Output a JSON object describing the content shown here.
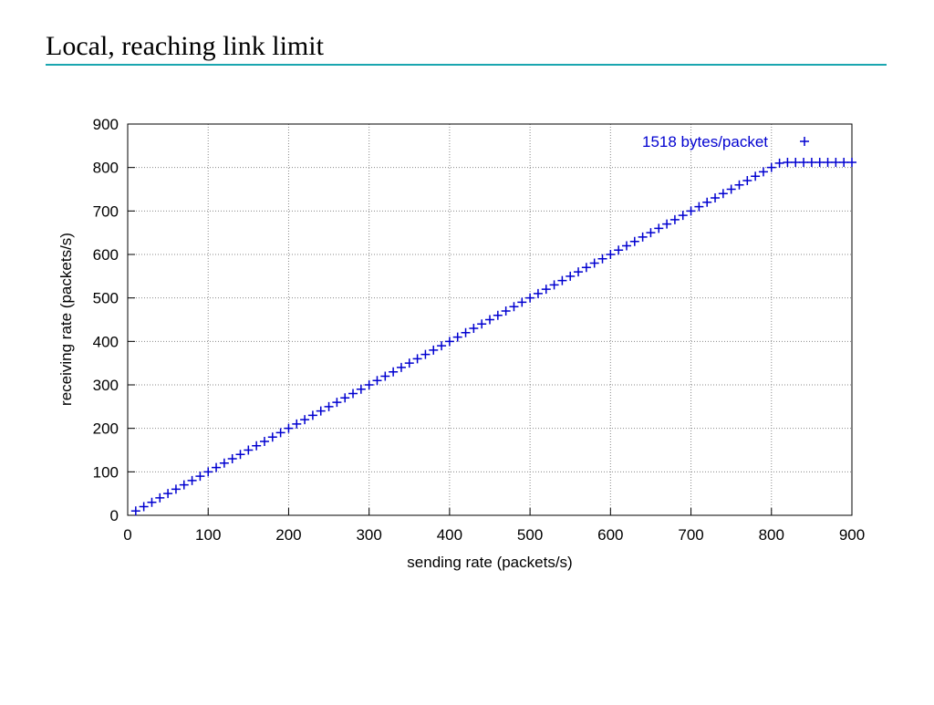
{
  "header": {
    "title": "Local, reaching link limit"
  },
  "chart_data": {
    "type": "scatter",
    "x_label": "sending rate (packets/s)",
    "y_label": "receiving rate (packets/s)",
    "x": [
      10,
      20,
      30,
      40,
      50,
      60,
      70,
      80,
      90,
      100,
      110,
      120,
      130,
      140,
      150,
      160,
      170,
      180,
      190,
      200,
      210,
      220,
      230,
      240,
      250,
      260,
      270,
      280,
      290,
      300,
      310,
      320,
      330,
      340,
      350,
      360,
      370,
      380,
      390,
      400,
      410,
      420,
      430,
      440,
      450,
      460,
      470,
      480,
      490,
      500,
      510,
      520,
      530,
      540,
      550,
      560,
      570,
      580,
      590,
      600,
      610,
      620,
      630,
      640,
      650,
      660,
      670,
      680,
      690,
      700,
      710,
      720,
      730,
      740,
      750,
      760,
      770,
      780,
      790,
      800,
      810,
      820,
      830,
      840,
      850,
      860,
      870,
      880,
      890,
      900
    ],
    "series": [
      {
        "name": "1518 bytes/packet",
        "color": "#0000d0",
        "values": [
          10,
          20,
          30,
          40,
          50,
          60,
          70,
          80,
          90,
          100,
          110,
          120,
          130,
          140,
          150,
          160,
          170,
          180,
          190,
          200,
          210,
          220,
          230,
          240,
          250,
          260,
          270,
          280,
          290,
          300,
          310,
          320,
          330,
          340,
          350,
          360,
          370,
          380,
          390,
          400,
          410,
          420,
          430,
          440,
          450,
          460,
          470,
          480,
          490,
          500,
          510,
          520,
          530,
          540,
          550,
          560,
          570,
          580,
          590,
          600,
          610,
          620,
          630,
          640,
          650,
          660,
          670,
          680,
          690,
          700,
          710,
          720,
          730,
          740,
          750,
          760,
          770,
          780,
          790,
          800,
          810,
          812,
          812,
          812,
          812,
          812,
          812,
          812,
          812,
          812
        ]
      }
    ],
    "xlim": [
      0,
      900
    ],
    "ylim": [
      0,
      900
    ],
    "xticks": [
      0,
      100,
      200,
      300,
      400,
      500,
      600,
      700,
      800,
      900
    ],
    "yticks": [
      0,
      100,
      200,
      300,
      400,
      500,
      600,
      700,
      800,
      900
    ],
    "grid": true,
    "legend": "top-right"
  }
}
